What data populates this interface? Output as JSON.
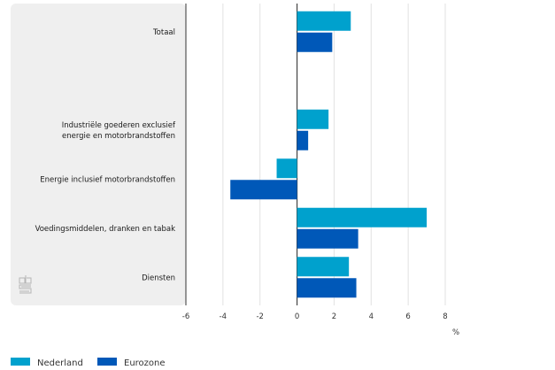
{
  "chart_data": {
    "type": "bar",
    "orientation": "horizontal",
    "title": "",
    "xlabel": "%",
    "ylabel": "",
    "xlim": [
      -6,
      8
    ],
    "xticks": [
      -6,
      -4,
      -2,
      0,
      2,
      4,
      6,
      8
    ],
    "xtick_labels": [
      "-6",
      "-4",
      "-2",
      "0",
      "2",
      "4",
      "6",
      "8"
    ],
    "grid": true,
    "legend_position": "bottom-left",
    "categories": [
      {
        "lines": [
          "Totaal"
        ],
        "has_data": true
      },
      {
        "lines": [],
        "has_data": false
      },
      {
        "lines": [
          "Industriële goederen exclusief",
          "energie en motorbrandstoffen"
        ],
        "has_data": true
      },
      {
        "lines": [
          "Energie inclusief motorbrandstoffen"
        ],
        "has_data": true
      },
      {
        "lines": [
          "Voedingsmiddelen, dranken en tabak"
        ],
        "has_data": true
      },
      {
        "lines": [
          "Diensten"
        ],
        "has_data": true
      }
    ],
    "series": [
      {
        "name": "Nederland",
        "color": "#00a1cd",
        "values": [
          2.9,
          null,
          1.7,
          -1.1,
          7.0,
          2.8
        ]
      },
      {
        "name": "Eurozone",
        "color": "#0058b8",
        "values": [
          1.9,
          null,
          0.6,
          -3.6,
          3.3,
          3.2
        ]
      }
    ]
  },
  "logo": {
    "name": "cbs-logo"
  }
}
